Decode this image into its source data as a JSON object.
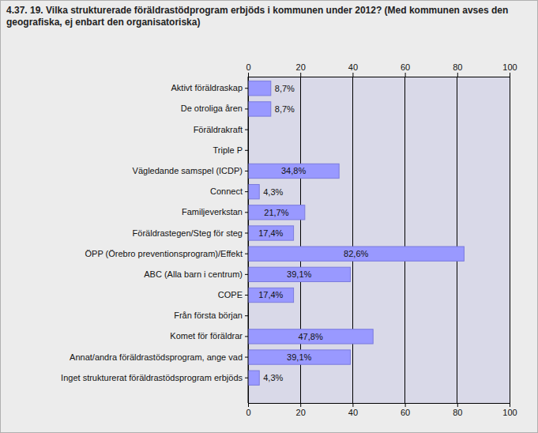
{
  "chart_data": {
    "type": "bar",
    "orientation": "horizontal",
    "title": "4.37. 19. Vilka strukturerade föräldrastödprogram erbjöds i kommunen under 2012? (Med kommunen avses den geografiska, ej enbart den organisatoriska)",
    "categories": [
      "Aktivt föräldraskap",
      "De otroliga åren",
      "Föräldrakraft",
      "Triple P",
      "Vägledande samspel (ICDP)",
      "Connect",
      "Familjeverkstan",
      "Föräldrastegen/Steg för steg",
      "ÖPP (Örebro preventionsprogram)/Effekt",
      "ABC (Alla barn i centrum)",
      "COPE",
      "Från första början",
      "Komet för föräldrar",
      "Annat/andra föräldrastödsprogram, ange vad",
      "Inget strukturerat föräldrastödsprogram erbjöds"
    ],
    "values": [
      8.7,
      8.7,
      null,
      null,
      34.8,
      4.3,
      21.7,
      17.4,
      82.6,
      39.1,
      17.4,
      null,
      47.8,
      39.1,
      4.3
    ],
    "value_labels": [
      "8,7%",
      "8,7%",
      null,
      null,
      "34,8%",
      "4,3%",
      "21,7%",
      "17,4%",
      "82,6%",
      "39,1%",
      "17,4%",
      null,
      "47,8%",
      "39,1%",
      "4,3%"
    ],
    "color": "#9999ff",
    "xlim": [
      0,
      100
    ],
    "xticks": [
      0,
      20,
      40,
      60,
      80,
      100
    ],
    "grid": true,
    "data_labels": true
  }
}
